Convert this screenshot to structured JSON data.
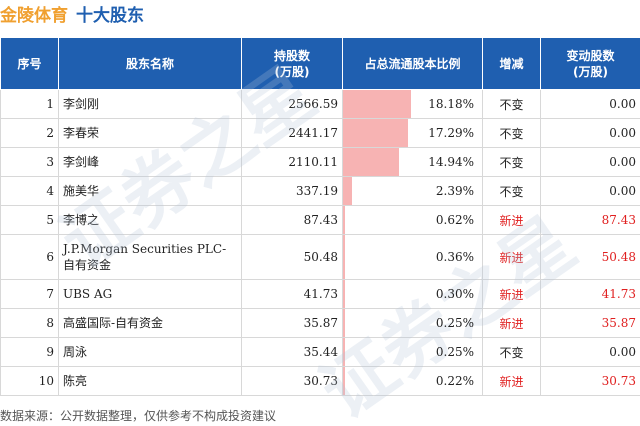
{
  "title": {
    "company": "金陵体育",
    "subtitle": "十大股东"
  },
  "table": {
    "headers": [
      "序号",
      "股东名称",
      "持股数\n(万股)",
      "占总流通股本比例",
      "增减",
      "变动股数\n(万股)"
    ],
    "rows": [
      {
        "rank": "1",
        "name": "李剑刚",
        "shares": "2566.59",
        "ratio": "18.18%",
        "ratio_value": 18.18,
        "change": "不变",
        "delta": "0.00",
        "is_new": false
      },
      {
        "rank": "2",
        "name": "李春荣",
        "shares": "2441.17",
        "ratio": "17.29%",
        "ratio_value": 17.29,
        "change": "不变",
        "delta": "0.00",
        "is_new": false
      },
      {
        "rank": "3",
        "name": "李剑峰",
        "shares": "2110.11",
        "ratio": "14.94%",
        "ratio_value": 14.94,
        "change": "不变",
        "delta": "0.00",
        "is_new": false
      },
      {
        "rank": "4",
        "name": "施美华",
        "shares": "337.19",
        "ratio": "2.39%",
        "ratio_value": 2.39,
        "change": "不变",
        "delta": "0.00",
        "is_new": false
      },
      {
        "rank": "5",
        "name": "李博之",
        "shares": "87.43",
        "ratio": "0.62%",
        "ratio_value": 0.62,
        "change": "新进",
        "delta": "87.43",
        "is_new": true
      },
      {
        "rank": "6",
        "name": "J.P.Morgan Securities PLC-自有资金",
        "shares": "50.48",
        "ratio": "0.36%",
        "ratio_value": 0.36,
        "change": "新进",
        "delta": "50.48",
        "is_new": true
      },
      {
        "rank": "7",
        "name": "UBS AG",
        "shares": "41.73",
        "ratio": "0.30%",
        "ratio_value": 0.3,
        "change": "新进",
        "delta": "41.73",
        "is_new": true
      },
      {
        "rank": "8",
        "name": "高盛国际-自有资金",
        "shares": "35.87",
        "ratio": "0.25%",
        "ratio_value": 0.25,
        "change": "新进",
        "delta": "35.87",
        "is_new": true
      },
      {
        "rank": "9",
        "name": "周泳",
        "shares": "35.44",
        "ratio": "0.25%",
        "ratio_value": 0.25,
        "change": "不变",
        "delta": "0.00",
        "is_new": false
      },
      {
        "rank": "10",
        "name": "陈亮",
        "shares": "30.73",
        "ratio": "0.22%",
        "ratio_value": 0.22,
        "change": "新进",
        "delta": "30.73",
        "is_new": true
      }
    ]
  },
  "source": "数据来源：公开数据整理，仅供参考不构成投资建议",
  "colors": {
    "header_bg": "#1f5fb0",
    "bar": "#f7b3b3",
    "new": "#e02020",
    "company": "#f0a030"
  }
}
